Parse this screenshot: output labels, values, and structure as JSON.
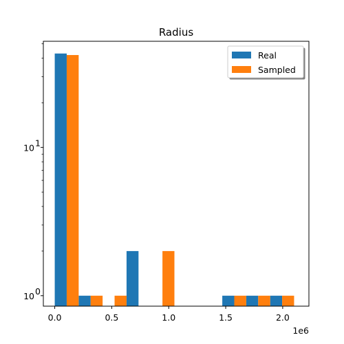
{
  "chart_data": {
    "type": "bar",
    "title": "Radius",
    "xlabel": "",
    "ylabel": "",
    "yscale": "log",
    "ylim": [
      0.85,
      52
    ],
    "xlim": [
      -100000.0,
      2230000.0
    ],
    "x_offset_label": "1e6",
    "bin_centers": [
      105000.0,
      315000.0,
      525000.0,
      735000.0,
      945000.0,
      1155000.0,
      1365000.0,
      1575000.0,
      1785000.0,
      1995000.0
    ],
    "bin_width": 210000.0,
    "series": [
      {
        "name": "Real",
        "color": "#1f77b4",
        "values": [
          43,
          1,
          0,
          2,
          0,
          0,
          0,
          1,
          1,
          1
        ]
      },
      {
        "name": "Sampled",
        "color": "#ff7f0e",
        "values": [
          42,
          1,
          1,
          0,
          2,
          0,
          0,
          1,
          1,
          1
        ]
      }
    ],
    "xticks": [
      {
        "value": 0,
        "label": "0.0"
      },
      {
        "value": 500000.0,
        "label": "0.5"
      },
      {
        "value": 1000000.0,
        "label": "1.0"
      },
      {
        "value": 1500000.0,
        "label": "1.5"
      },
      {
        "value": 2000000.0,
        "label": "2.0"
      }
    ],
    "yticks_major": [
      {
        "value": 1,
        "label": "10",
        "exp": "0"
      },
      {
        "value": 10,
        "label": "10",
        "exp": "1"
      }
    ],
    "yticks_minor": [
      2,
      3,
      4,
      5,
      6,
      7,
      8,
      9,
      20,
      30,
      40,
      50
    ],
    "legend": {
      "location": "top-right",
      "entries": [
        "Real",
        "Sampled"
      ]
    },
    "grid": false
  }
}
